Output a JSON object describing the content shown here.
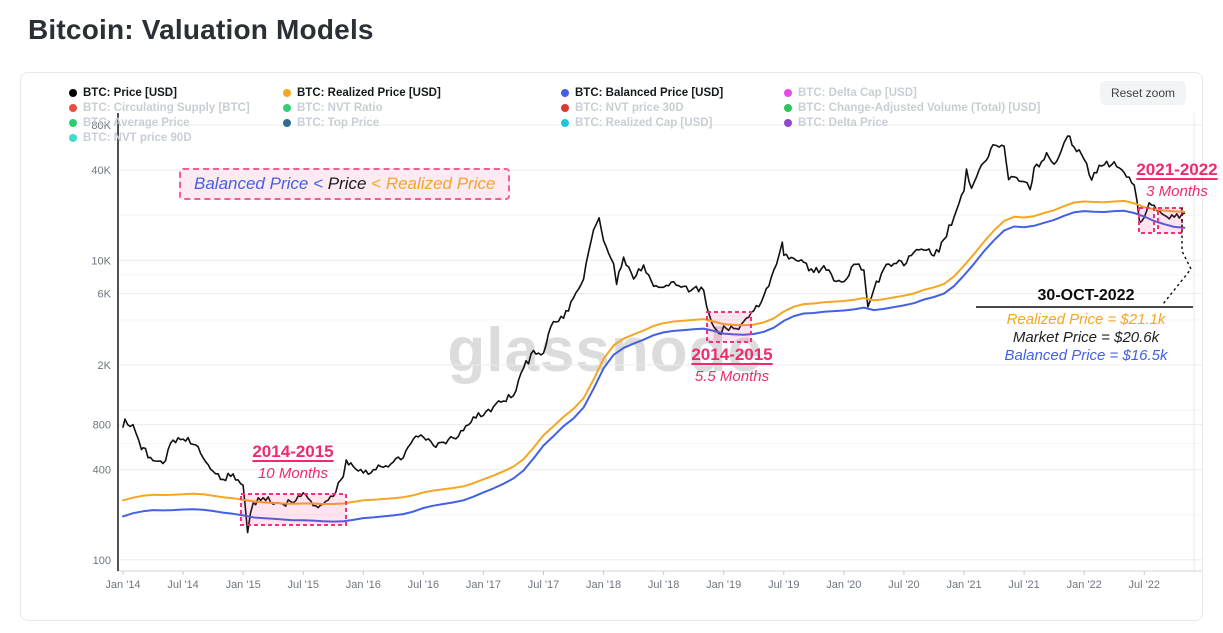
{
  "title": "Bitcoin: Valuation Models",
  "toolbar": {
    "reset_zoom_label": "Reset zoom"
  },
  "watermark": "glassnode",
  "colors": {
    "price": "#111111",
    "realized": "#f5a623",
    "balanced": "#4361e2",
    "annotation_pink": "#ef2a6f",
    "box_border": "#f4317b",
    "box_fill": "rgba(244,49,123,0.13)",
    "inactive_legend": "#c9ced6",
    "watermark_grey": "#dcdcdc"
  },
  "legend": {
    "items": [
      {
        "label": "BTC: Price [USD]",
        "dot": "#000000",
        "active": true,
        "col": 0,
        "row": 0
      },
      {
        "label": "BTC: Realized Price [USD]",
        "dot": "#f5a623",
        "active": true,
        "col": 1,
        "row": 0
      },
      {
        "label": "BTC: Balanced Price [USD]",
        "dot": "#4361e2",
        "active": true,
        "col": 2,
        "row": 0
      },
      {
        "label": "BTC: Delta Cap [USD]",
        "dot": "#e649e6",
        "active": false,
        "col": 3,
        "row": 0
      },
      {
        "label": "BTC: Circulating Supply [BTC]",
        "dot": "#ea4e43",
        "active": false,
        "col": 0,
        "row": 1
      },
      {
        "label": "BTC: NVT Ratio",
        "dot": "#36cf77",
        "active": false,
        "col": 1,
        "row": 1
      },
      {
        "label": "BTC: NVT price 30D",
        "dot": "#dc3832",
        "active": false,
        "col": 2,
        "row": 1
      },
      {
        "label": "BTC: Change-Adjusted Volume (Total) [USD]",
        "dot": "#31c45d",
        "active": false,
        "col": 3,
        "row": 1
      },
      {
        "label": "BTC: Average Price",
        "dot": "#2ecc71",
        "active": false,
        "col": 0,
        "row": 2
      },
      {
        "label": "BTC: Top Price",
        "dot": "#2f6e8f",
        "active": false,
        "col": 1,
        "row": 2
      },
      {
        "label": "BTC: Realized Cap [USD]",
        "dot": "#22c3dd",
        "active": false,
        "col": 2,
        "row": 2
      },
      {
        "label": "BTC: Delta Price",
        "dot": "#8c49cf",
        "active": false,
        "col": 3,
        "row": 2
      },
      {
        "label": "BTC: NVT price 90D",
        "dot": "#45d9c8",
        "active": false,
        "col": 0,
        "row": 3
      }
    ]
  },
  "annotations": {
    "formula": {
      "parts": [
        {
          "text": "Balanced Price",
          "color": "blue"
        },
        {
          "text": " < ",
          "color": "blue"
        },
        {
          "text": "Price",
          "color": "black"
        },
        {
          "text": " < ",
          "color": "orange"
        },
        {
          "text": "Realized Price",
          "color": "orange"
        }
      ]
    },
    "period1": {
      "title": "2014-2015",
      "subtitle": "10 Months"
    },
    "period2": {
      "title": "2014-2015",
      "subtitle": "5.5 Months"
    },
    "period3": {
      "title": "2021-2022",
      "subtitle": "3 Months"
    },
    "callout": {
      "date": "30-OCT-2022",
      "lines": [
        {
          "text": "Realized Price = $21.1k",
          "color": "orange"
        },
        {
          "text": "Market Price = $20.6k",
          "color": "black"
        },
        {
          "text": "Balanced Price = $16.5k",
          "color": "blue"
        }
      ]
    }
  },
  "chart_data": {
    "type": "line",
    "yscale": "log",
    "x_axis": {
      "start": "Jan 2014",
      "months_per_tick": 6,
      "tick_labels": [
        "Jan '14",
        "Jul '14",
        "Jan '15",
        "Jul '15",
        "Jan '16",
        "Jul '16",
        "Jan '17",
        "Jul '17",
        "Jan '18",
        "Jul '18",
        "Jan '19",
        "Jul '19",
        "Jan '20",
        "Jul '20",
        "Jan '21",
        "Jul '21",
        "Jan '22",
        "Jul '22"
      ]
    },
    "y_axis": {
      "unit": "USD",
      "ticks": [
        {
          "label": "80K",
          "value": 80000
        },
        {
          "label": "40K",
          "value": 40000
        },
        {
          "label": "10K",
          "value": 10000
        },
        {
          "label": "6K",
          "value": 6000
        },
        {
          "label": "2K",
          "value": 2000
        },
        {
          "label": "800",
          "value": 800
        },
        {
          "label": "400",
          "value": 400
        },
        {
          "label": "100",
          "value": 100
        }
      ],
      "minor_gridlines": [
        20000,
        8000,
        4000,
        1000,
        600,
        200
      ]
    },
    "series": [
      {
        "name": "BTC: Price [USD]",
        "color": "#111111",
        "style": "jagged",
        "width": 1.6,
        "monthly_usd": [
          770,
          800,
          560,
          460,
          440,
          630,
          640,
          590,
          480,
          390,
          345,
          375,
          315,
          240,
          260,
          235,
          235,
          240,
          280,
          230,
          235,
          265,
          360,
          420,
          380,
          400,
          415,
          450,
          480,
          640,
          660,
          580,
          610,
          650,
          730,
          900,
          920,
          1050,
          1150,
          1250,
          1900,
          2500,
          2400,
          3900,
          4100,
          5600,
          7500,
          16000,
          13500,
          9500,
          10500,
          7500,
          9300,
          6700,
          6600,
          7200,
          6700,
          6500,
          6300,
          3600,
          3650,
          3500,
          3900,
          4600,
          5800,
          8600,
          10800,
          10300,
          9700,
          8300,
          9200,
          7300,
          7200,
          9400,
          8600,
          6400,
          8800,
          9500,
          9200,
          11300,
          11700,
          10700,
          13800,
          19400,
          29000,
          33000,
          45000,
          58800,
          57800,
          36000,
          33500,
          41500,
          47000,
          43800,
          61000,
          57000,
          47000,
          38500,
          43400,
          45500,
          38500,
          31800,
          19300,
          23300,
          20000,
          19400,
          20600
        ],
        "extra_points": [
          {
            "m": 0.2,
            "v": 870
          },
          {
            "m": 1.85,
            "v": 545
          },
          {
            "m": 12.45,
            "v": 152
          },
          {
            "m": 22.3,
            "v": 465
          },
          {
            "m": 47.55,
            "v": 19200
          },
          {
            "m": 49.3,
            "v": 6900
          },
          {
            "m": 58.6,
            "v": 4250
          },
          {
            "m": 59.5,
            "v": 3250
          },
          {
            "m": 65.85,
            "v": 13200
          },
          {
            "m": 74.4,
            "v": 4900
          },
          {
            "m": 77.5,
            "v": 10000
          },
          {
            "m": 84.25,
            "v": 40700
          },
          {
            "m": 84.75,
            "v": 30200
          },
          {
            "m": 86.9,
            "v": 59000
          },
          {
            "m": 88.45,
            "v": 34500
          },
          {
            "m": 90.6,
            "v": 29600
          },
          {
            "m": 92.25,
            "v": 52300
          },
          {
            "m": 94.35,
            "v": 67500
          },
          {
            "m": 96.75,
            "v": 34300
          },
          {
            "m": 101.55,
            "v": 17800
          },
          {
            "m": 102.5,
            "v": 24200
          }
        ]
      },
      {
        "name": "BTC: Realized Price [USD]",
        "color": "#f5a623",
        "style": "smooth",
        "width": 2,
        "monthly_usd": [
          250,
          260,
          268,
          272,
          271,
          272,
          274,
          276,
          274,
          268,
          262,
          258,
          252,
          246,
          242,
          240,
          238,
          237,
          238,
          238,
          236,
          236,
          238,
          244,
          250,
          252,
          255,
          258,
          262,
          270,
          282,
          290,
          296,
          302,
          310,
          325,
          345,
          365,
          390,
          420,
          470,
          560,
          680,
          780,
          900,
          1020,
          1200,
          1600,
          2200,
          2700,
          3000,
          3200,
          3400,
          3650,
          3800,
          3900,
          3950,
          4000,
          4050,
          3900,
          3750,
          3700,
          3680,
          3720,
          3850,
          4100,
          4550,
          4900,
          5100,
          5150,
          5250,
          5300,
          5350,
          5450,
          5600,
          5400,
          5500,
          5650,
          5800,
          6000,
          6350,
          6600,
          6950,
          7800,
          9200,
          11000,
          13300,
          15800,
          18300,
          19500,
          19300,
          19700,
          20700,
          21600,
          23000,
          24300,
          24700,
          24500,
          24400,
          24700,
          24900,
          24000,
          22700,
          21900,
          21500,
          21200,
          21100
        ]
      },
      {
        "name": "BTC: Balanced Price [USD]",
        "color": "#4361e2",
        "style": "smooth",
        "width": 2,
        "monthly_usd": [
          195,
          205,
          211,
          215,
          214,
          215,
          217,
          218,
          216,
          212,
          207,
          203,
          198,
          192,
          190,
          188,
          186,
          184,
          184,
          183,
          181,
          180,
          181,
          185,
          190,
          192,
          195,
          198,
          202,
          210,
          222,
          230,
          236,
          242,
          250,
          264,
          282,
          300,
          322,
          350,
          395,
          475,
          580,
          670,
          780,
          880,
          1040,
          1390,
          1900,
          2340,
          2600,
          2780,
          2950,
          3160,
          3300,
          3380,
          3420,
          3460,
          3500,
          3380,
          3240,
          3200,
          3180,
          3220,
          3330,
          3550,
          3940,
          4240,
          4410,
          4450,
          4540,
          4580,
          4620,
          4700,
          4830,
          4650,
          4740,
          4870,
          5000,
          5170,
          5470,
          5690,
          5990,
          6720,
          7930,
          9480,
          11500,
          13600,
          15800,
          16800,
          16600,
          17000,
          17800,
          18600,
          19800,
          20900,
          21300,
          21100,
          21000,
          21300,
          21400,
          20700,
          19600,
          18300,
          17400,
          16700,
          16500
        ]
      }
    ]
  }
}
